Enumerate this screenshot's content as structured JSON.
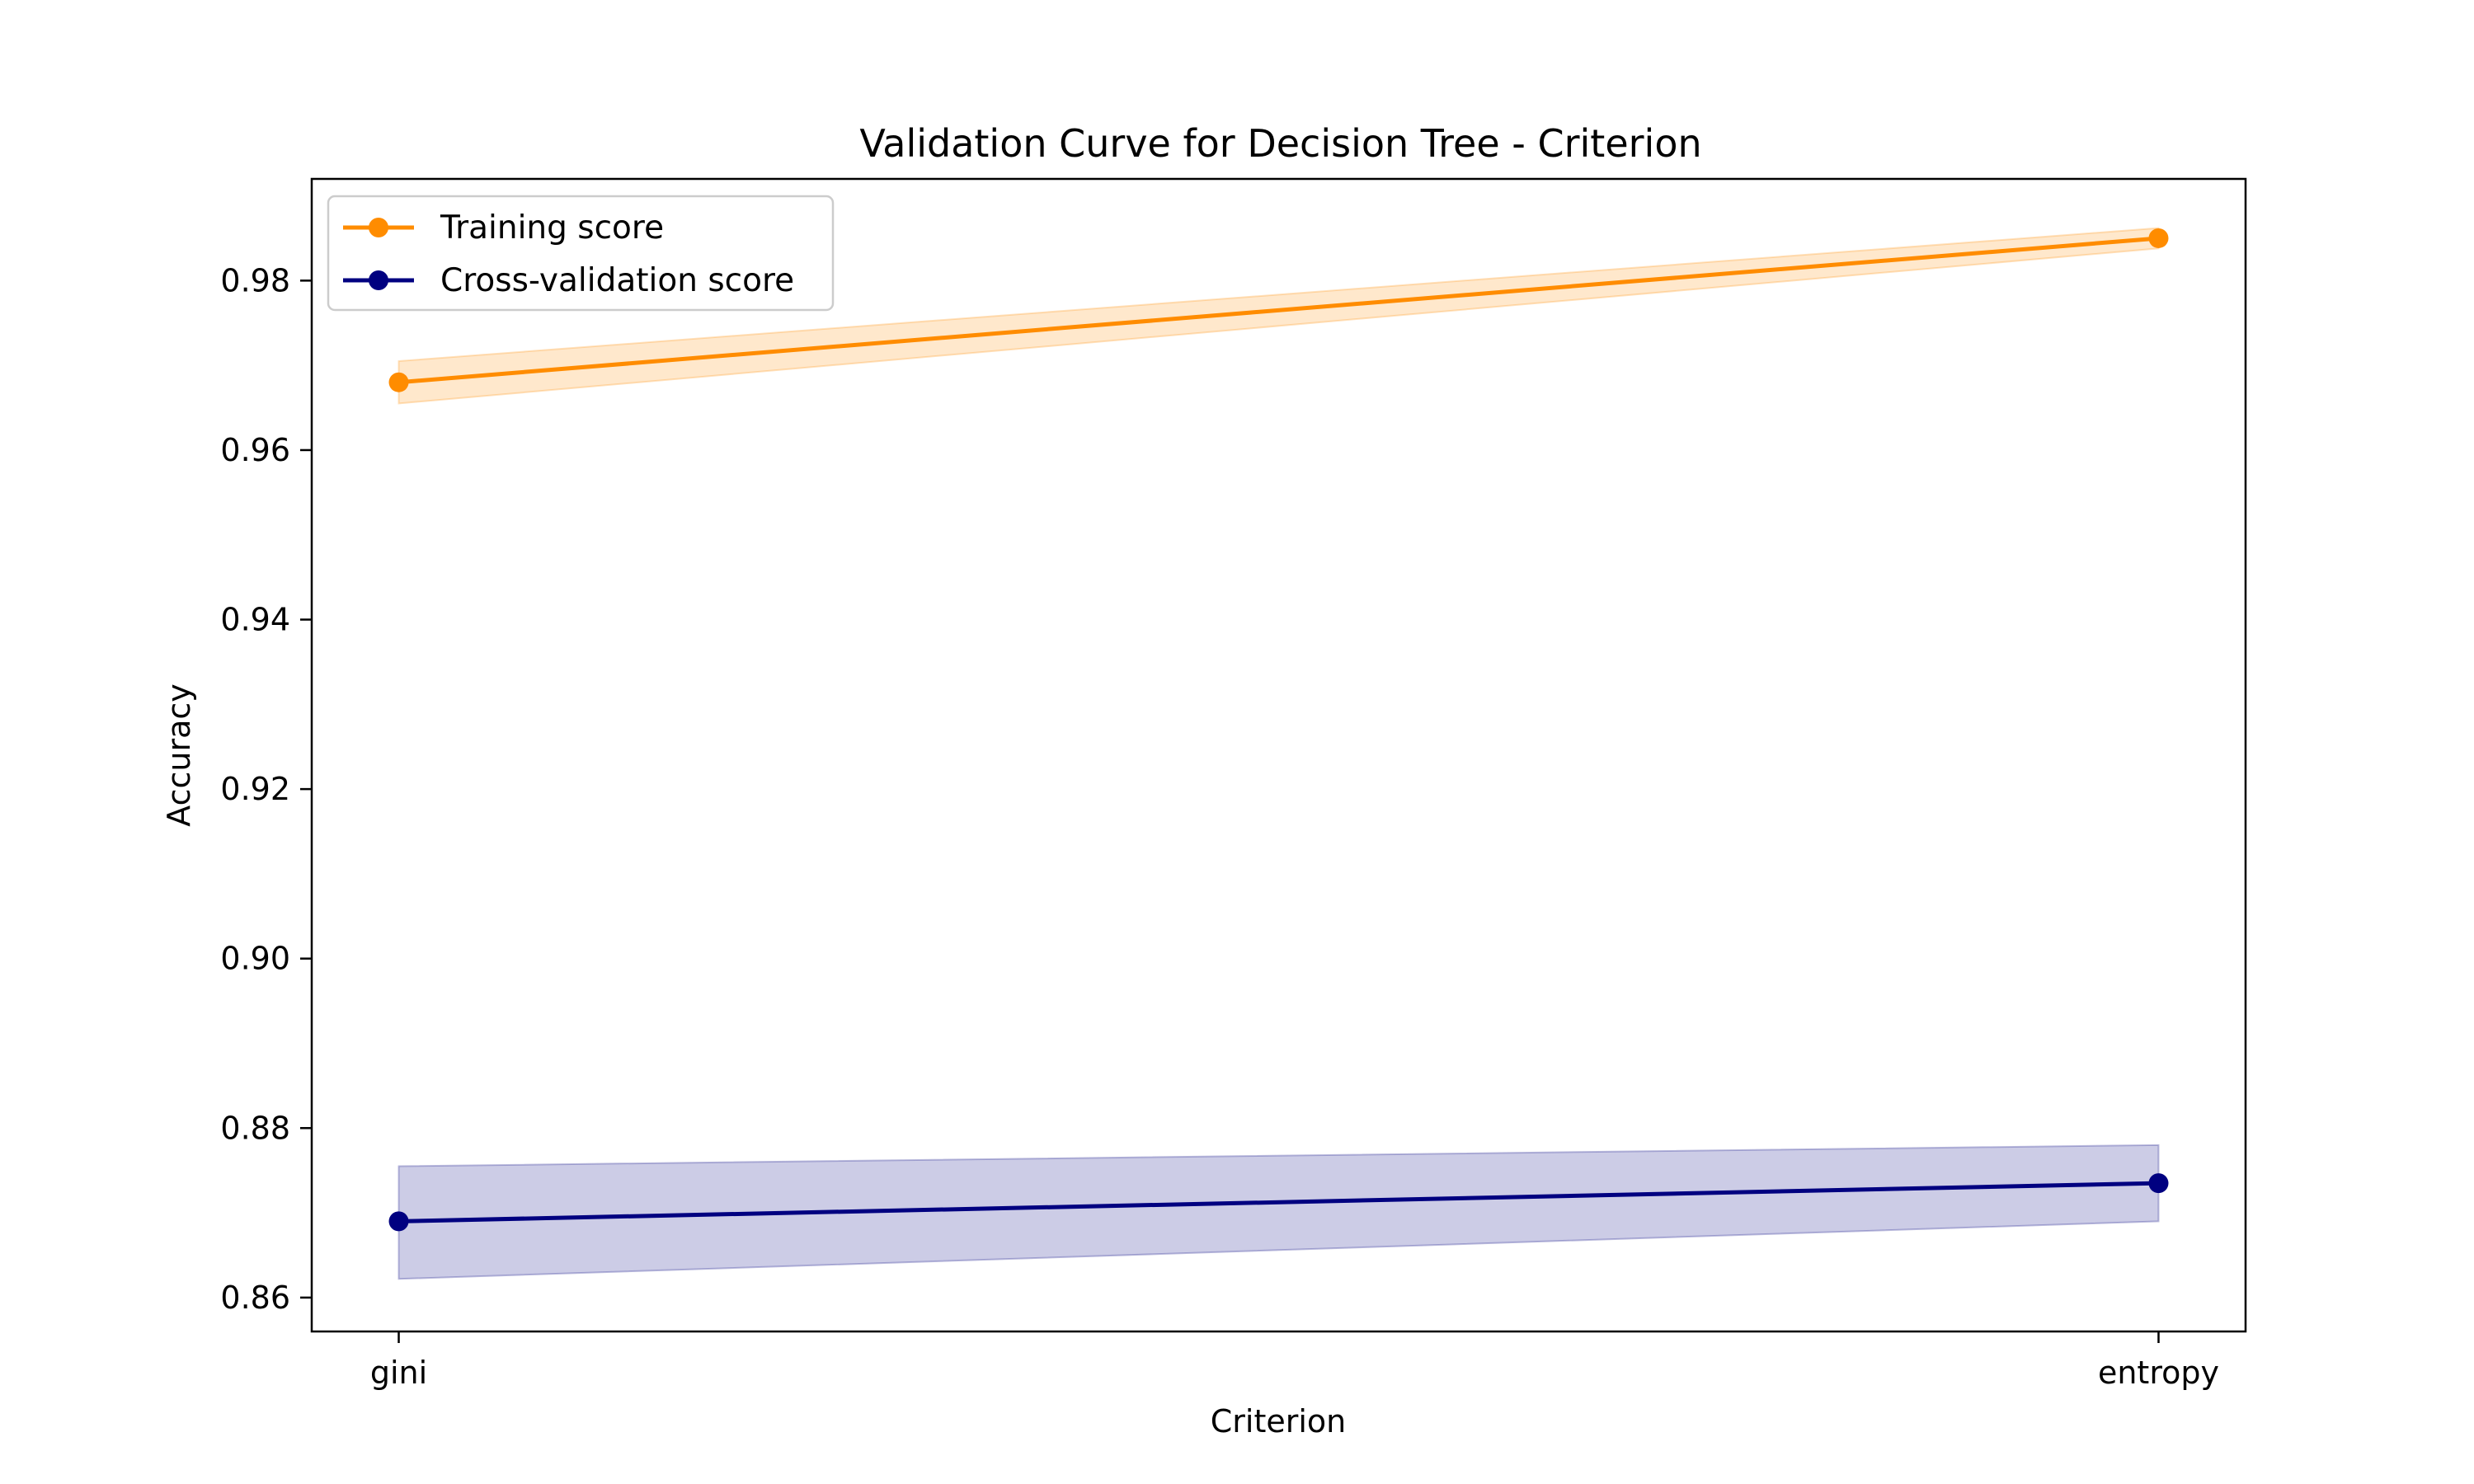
{
  "chart_data": {
    "type": "line",
    "title": "Validation Curve for Decision Tree - Criterion",
    "xlabel": "Criterion",
    "ylabel": "Accuracy",
    "categories": [
      "gini",
      "entropy"
    ],
    "ylim": [
      0.856,
      0.992
    ],
    "yticks": [
      0.86,
      0.88,
      0.9,
      0.92,
      0.94,
      0.96,
      0.98
    ],
    "ytick_labels": [
      "0.86",
      "0.88",
      "0.90",
      "0.92",
      "0.94",
      "0.96",
      "0.98"
    ],
    "grid": false,
    "legend_position": "top-left",
    "series": [
      {
        "name": "Training score",
        "color": "#ff8c00",
        "values": [
          0.968,
          0.985
        ],
        "band_lower": [
          0.9655,
          0.9838
        ],
        "band_upper": [
          0.9705,
          0.9862
        ]
      },
      {
        "name": "Cross-validation score",
        "color": "#000080",
        "values": [
          0.869,
          0.8735
        ],
        "band_lower": [
          0.8622,
          0.869
        ],
        "band_upper": [
          0.8755,
          0.878
        ]
      }
    ]
  }
}
